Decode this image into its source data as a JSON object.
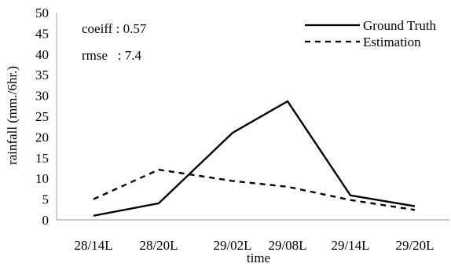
{
  "chart_data": {
    "type": "line",
    "categories": [
      "28/14L",
      "28/20L",
      "29/02L",
      "29/08L",
      "29/14L",
      "29/20L"
    ],
    "series": [
      {
        "name": "Ground Truth",
        "values": [
          1.0,
          4.0,
          21.0,
          28.6,
          5.9,
          3.3
        ],
        "style": "solid"
      },
      {
        "name": "Estimation",
        "values": [
          5.0,
          12.1,
          9.4,
          8.0,
          4.8,
          2.4
        ],
        "style": "dashed"
      }
    ],
    "xlabel": "time",
    "ylabel": "rainfall (mm./6hr.)",
    "ylim": [
      0,
      50
    ],
    "yticks": [
      "0",
      "5",
      "10",
      "15",
      "20",
      "25",
      "30",
      "35",
      "40",
      "45",
      "50"
    ],
    "grid": false,
    "legend_position": "top-right",
    "annotations": [
      {
        "label": "coeiff",
        "separator": " : ",
        "value": "0.57"
      },
      {
        "label": "rmse",
        "separator": "   : ",
        "value": "7.4"
      }
    ],
    "colors": {
      "line": "#000000",
      "axis": "#999999"
    }
  }
}
